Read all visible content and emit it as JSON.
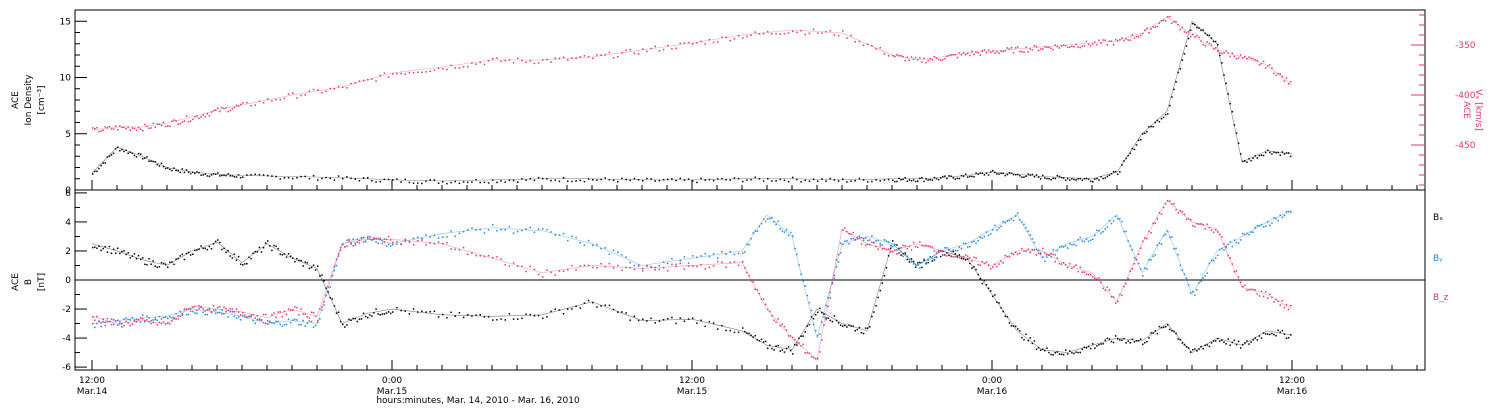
{
  "chart_data": [
    {
      "type": "scatter",
      "panel": "top",
      "ylabel_left": [
        "ACE",
        "Ion Density",
        "[cm⁻³]"
      ],
      "ylabel_right": [
        "ACE",
        "Vₓ [km/s]"
      ],
      "y_left_ticks": [
        "0",
        "5",
        "10",
        "15"
      ],
      "y_right_ticks": [
        "-350",
        "-400",
        "-450"
      ],
      "ylim_left": [
        0,
        16
      ],
      "ylim_right": [
        -495,
        -315
      ],
      "series": [
        {
          "color": "#000000",
          "axis": "left",
          "x_hours": [
            0,
            1,
            2,
            3,
            4,
            5,
            6,
            8,
            10,
            12,
            14,
            16,
            18,
            20,
            22,
            24,
            26,
            28,
            30,
            32,
            33,
            34,
            35,
            36,
            37,
            38,
            39,
            40,
            41,
            42,
            43,
            44,
            45,
            46,
            47,
            48
          ],
          "values": [
            1.5,
            3.8,
            3.0,
            2.0,
            1.6,
            1.4,
            1.3,
            1.2,
            1.1,
            0.9,
            0.8,
            0.9,
            1.0,
            1.0,
            0.9,
            0.9,
            1.0,
            1.0,
            0.9,
            1.0,
            1.0,
            1.1,
            1.3,
            1.6,
            1.4,
            1.2,
            1.1,
            1.0,
            1.6,
            5.0,
            7.0,
            15.0,
            13.0,
            2.5,
            3.5,
            3.2
          ]
        },
        {
          "color": "#e8366a",
          "axis": "right",
          "x_hours": [
            0,
            1,
            2,
            3,
            4,
            5,
            6,
            8,
            10,
            12,
            14,
            16,
            18,
            20,
            22,
            24,
            26,
            28,
            30,
            32,
            33,
            34,
            35,
            36,
            37,
            38,
            39,
            40,
            41,
            42,
            43,
            44,
            45,
            46,
            47,
            48
          ],
          "values": [
            -435,
            -432,
            -432,
            -428,
            -422,
            -415,
            -410,
            -400,
            -392,
            -378,
            -372,
            -365,
            -365,
            -362,
            -355,
            -348,
            -340,
            -335,
            -338,
            -360,
            -365,
            -362,
            -358,
            -356,
            -354,
            -352,
            -350,
            -348,
            -346,
            -338,
            -322,
            -340,
            -355,
            -362,
            -370,
            -390
          ]
        }
      ]
    },
    {
      "type": "scatter",
      "panel": "bottom",
      "ylabel_left": [
        "ACE",
        "B",
        "[nT]"
      ],
      "y_ticks": [
        "-6",
        "-4",
        "-2",
        "0",
        "2",
        "4",
        "6"
      ],
      "ylim": [
        -6.2,
        6.2
      ],
      "legend": [
        "Bₓ",
        "Bᵧ",
        "B_z"
      ],
      "series": [
        {
          "name": "Bₓ",
          "color": "#000000",
          "x_hours": [
            0,
            1,
            2,
            3,
            4,
            5,
            6,
            7,
            8,
            9,
            10,
            11,
            12,
            14,
            16,
            18,
            20,
            22,
            24,
            26,
            27,
            28,
            29,
            30,
            31,
            32,
            33,
            34,
            35,
            36,
            37,
            38,
            39,
            40,
            41,
            42,
            43,
            44,
            45,
            46,
            47,
            48
          ],
          "values": [
            2.5,
            2.0,
            1.4,
            1.0,
            2.0,
            2.6,
            1.2,
            2.5,
            1.5,
            0.8,
            -3.0,
            -2.3,
            -2.0,
            -2.4,
            -2.5,
            -2.4,
            -1.5,
            -2.8,
            -2.7,
            -3.5,
            -4.5,
            -4.8,
            -2.0,
            -3.0,
            -3.5,
            2.5,
            1.0,
            2.0,
            1.5,
            -1.0,
            -3.5,
            -4.8,
            -5.0,
            -4.5,
            -4.0,
            -4.2,
            -3.0,
            -5.0,
            -4.0,
            -4.5,
            -3.5,
            -3.8
          ]
        },
        {
          "name": "Bᵧ",
          "color": "#1e88e5",
          "x_hours": [
            0,
            1,
            2,
            3,
            4,
            5,
            6,
            7,
            8,
            9,
            10,
            11,
            12,
            14,
            16,
            18,
            20,
            22,
            24,
            26,
            27,
            28,
            29,
            30,
            31,
            32,
            33,
            34,
            35,
            36,
            37,
            38,
            39,
            40,
            41,
            42,
            43,
            44,
            45,
            46,
            47,
            48
          ],
          "values": [
            -3.0,
            -2.8,
            -2.6,
            -2.5,
            -2.0,
            -2.2,
            -2.5,
            -3.0,
            -2.8,
            -3.0,
            2.5,
            3.0,
            2.5,
            3.2,
            3.6,
            3.4,
            2.5,
            1.0,
            1.5,
            2.0,
            4.5,
            3.0,
            -4.0,
            2.5,
            3.0,
            2.5,
            1.0,
            2.0,
            2.5,
            3.5,
            4.5,
            1.5,
            2.5,
            3.0,
            4.5,
            0.5,
            3.5,
            -1.0,
            2.0,
            3.0,
            4.0,
            4.8
          ]
        },
        {
          "name": "B_z",
          "color": "#e8366a",
          "x_hours": [
            0,
            1,
            2,
            3,
            4,
            5,
            6,
            7,
            8,
            9,
            10,
            11,
            12,
            14,
            16,
            18,
            20,
            22,
            24,
            26,
            27,
            28,
            29,
            30,
            31,
            32,
            33,
            34,
            35,
            36,
            37,
            38,
            39,
            40,
            41,
            42,
            43,
            44,
            45,
            46,
            47,
            48
          ],
          "values": [
            -2.5,
            -3.0,
            -2.8,
            -3.0,
            -1.8,
            -2.0,
            -2.2,
            -2.6,
            -2.0,
            -2.5,
            2.5,
            2.8,
            2.8,
            2.5,
            1.5,
            0.5,
            1.0,
            0.8,
            1.0,
            1.2,
            -2.0,
            -4.0,
            -5.5,
            3.5,
            2.5,
            2.0,
            2.5,
            2.0,
            1.5,
            1.0,
            2.0,
            2.0,
            1.0,
            0.5,
            -1.5,
            2.5,
            5.5,
            4.0,
            3.5,
            -0.5,
            -1.0,
            -2.0
          ]
        }
      ]
    }
  ],
  "xaxis": {
    "ticks": [
      {
        "hour": 0,
        "label": "12:00",
        "date": "Mar.14"
      },
      {
        "hour": 12,
        "label": "0:00",
        "date": "Mar.15"
      },
      {
        "hour": 24,
        "label": "12:00",
        "date": "Mar.15"
      },
      {
        "hour": 36,
        "label": "0:00",
        "date": "Mar.16"
      },
      {
        "hour": 48,
        "label": "12:00",
        "date": "Mar.16"
      }
    ],
    "title": "hours:minutes, Mar. 14, 2010 - Mar. 16, 2010"
  }
}
